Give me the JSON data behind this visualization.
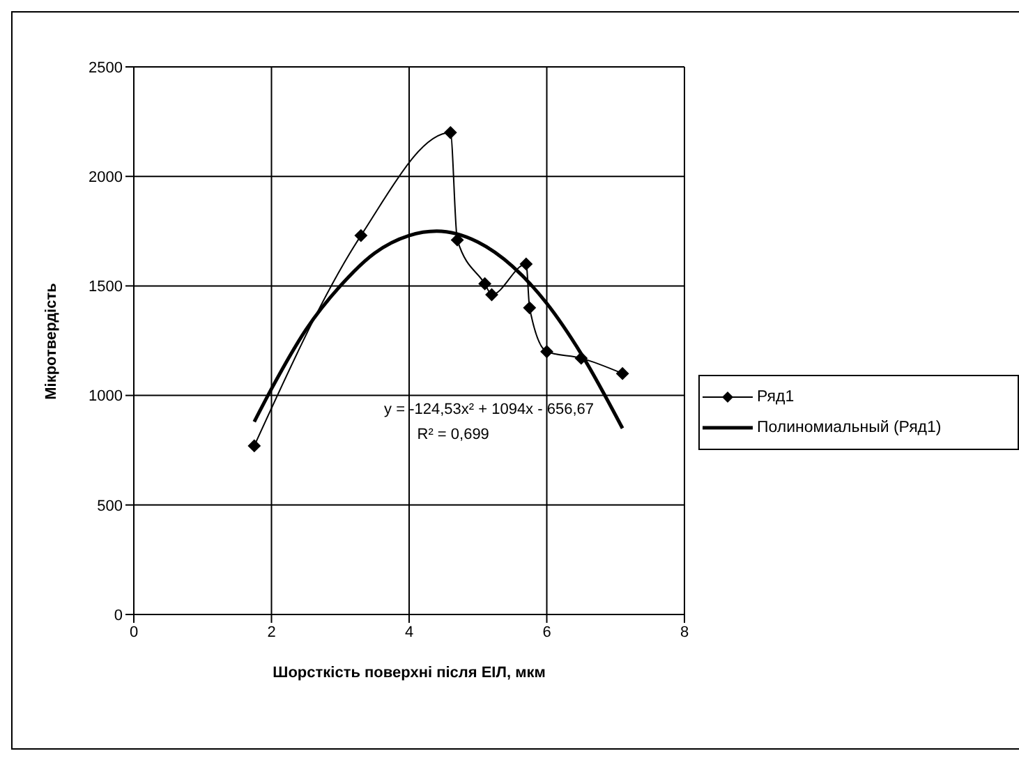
{
  "chart_data": {
    "type": "line",
    "xlabel": "Шорсткість поверхні після ЕІЛ, мкм",
    "ylabel": "Мікротвердість",
    "xlim": [
      0,
      8
    ],
    "xticks": [
      0,
      2,
      4,
      6,
      8
    ],
    "ylim": [
      0,
      2500
    ],
    "yticks": [
      0,
      500,
      1000,
      1500,
      2000,
      2500
    ],
    "grid": true,
    "legend": "right",
    "line_style": "solid",
    "series": [
      {
        "name": "Ряд1",
        "color": "#000000",
        "marker": "diamond",
        "x": [
          1.75,
          3.3,
          4.6,
          4.7,
          5.1,
          5.2,
          5.7,
          5.75,
          6.0,
          6.5,
          7.1
        ],
        "values": [
          770,
          1730,
          2200,
          1710,
          1510,
          1460,
          1600,
          1400,
          1200,
          1170,
          1100
        ]
      },
      {
        "name": "Полиномиальный (Ряд1)",
        "color": "#000000",
        "marker": "none",
        "x": [
          1.75,
          2,
          2.5,
          3,
          3.5,
          4,
          4.4,
          5,
          5.5,
          6,
          6.5,
          7.1
        ],
        "values": [
          880,
          1030,
          1300,
          1500,
          1650,
          1730,
          1750,
          1700,
          1590,
          1420,
          1190,
          850
        ]
      }
    ],
    "annotations": [
      "y = -124,53x² + 1094x - 656,67",
      "R² = 0,699"
    ]
  }
}
